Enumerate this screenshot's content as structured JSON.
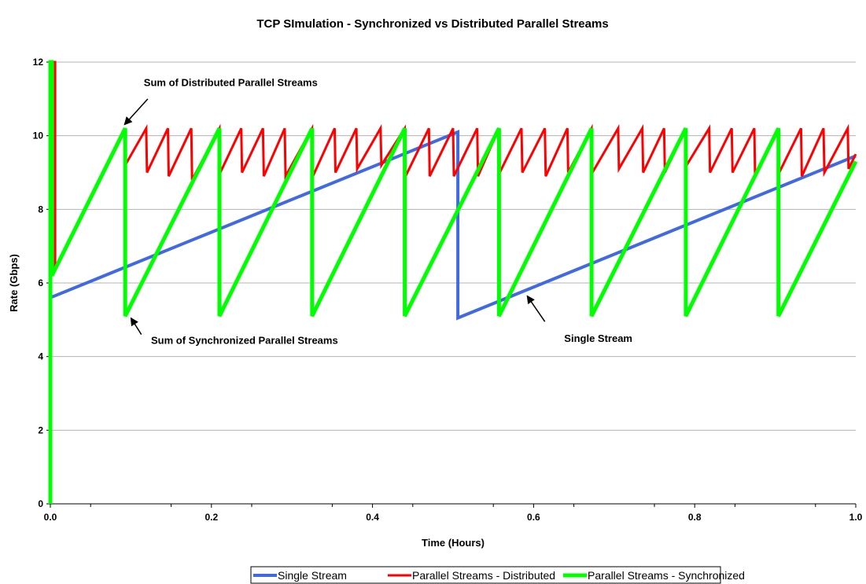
{
  "chart_data": {
    "type": "line",
    "title": "TCP SImulation - Synchronized vs Distributed Parallel Streams",
    "xlabel": "Time (Hours)",
    "ylabel": "Rate (Gbps)",
    "xlim": [
      0,
      1
    ],
    "ylim": [
      0,
      12
    ],
    "x_ticks": [
      "0.0",
      "0.2",
      "0.4",
      "0.6",
      "0.8",
      "1.0"
    ],
    "y_ticks": [
      "0",
      "2",
      "4",
      "6",
      "8",
      "10",
      "12"
    ],
    "grid": "horizontal",
    "legend_position": "bottom",
    "series": [
      {
        "name": "Single Stream",
        "color": "#4169e1",
        "points": [
          [
            0.0,
            5.6
          ],
          [
            0.506,
            10.1
          ],
          [
            0.506,
            5.05
          ],
          [
            1.0,
            9.45
          ]
        ]
      },
      {
        "name": "Parallel Streams - Distributed",
        "color": "#ff0000",
        "points": [
          [
            0.0,
            12.0
          ],
          [
            0.006,
            12.0
          ],
          [
            0.006,
            6.4
          ],
          [
            0.092,
            10.2
          ],
          [
            0.093,
            9.2
          ],
          [
            0.119,
            10.2
          ],
          [
            0.12,
            9.0
          ],
          [
            0.146,
            10.2
          ],
          [
            0.147,
            8.9
          ],
          [
            0.175,
            10.2
          ],
          [
            0.176,
            8.8
          ],
          [
            0.21,
            10.2
          ],
          [
            0.211,
            9.0
          ],
          [
            0.237,
            10.2
          ],
          [
            0.238,
            9.0
          ],
          [
            0.264,
            10.2
          ],
          [
            0.265,
            8.9
          ],
          [
            0.291,
            10.2
          ],
          [
            0.292,
            8.9
          ],
          [
            0.325,
            10.2
          ],
          [
            0.326,
            8.9
          ],
          [
            0.353,
            10.2
          ],
          [
            0.354,
            9.0
          ],
          [
            0.38,
            10.2
          ],
          [
            0.381,
            9.1
          ],
          [
            0.41,
            10.2
          ],
          [
            0.411,
            9.2
          ],
          [
            0.44,
            10.2
          ],
          [
            0.441,
            8.9
          ],
          [
            0.47,
            10.2
          ],
          [
            0.471,
            8.9
          ],
          [
            0.5,
            10.2
          ],
          [
            0.501,
            8.9
          ],
          [
            0.53,
            10.2
          ],
          [
            0.531,
            8.9
          ],
          [
            0.557,
            10.2
          ],
          [
            0.558,
            9.0
          ],
          [
            0.585,
            10.2
          ],
          [
            0.586,
            9.0
          ],
          [
            0.614,
            10.2
          ],
          [
            0.615,
            8.9
          ],
          [
            0.642,
            10.2
          ],
          [
            0.643,
            9.0
          ],
          [
            0.672,
            10.2
          ],
          [
            0.673,
            9.0
          ],
          [
            0.705,
            10.2
          ],
          [
            0.706,
            9.1
          ],
          [
            0.735,
            10.2
          ],
          [
            0.736,
            9.0
          ],
          [
            0.762,
            10.2
          ],
          [
            0.763,
            9.0
          ],
          [
            0.789,
            10.2
          ],
          [
            0.79,
            9.2
          ],
          [
            0.818,
            10.2
          ],
          [
            0.819,
            9.0
          ],
          [
            0.846,
            10.2
          ],
          [
            0.847,
            9.0
          ],
          [
            0.874,
            10.2
          ],
          [
            0.875,
            8.9
          ],
          [
            0.904,
            10.2
          ],
          [
            0.905,
            9.0
          ],
          [
            0.932,
            10.2
          ],
          [
            0.933,
            8.9
          ],
          [
            0.96,
            10.2
          ],
          [
            0.961,
            9.0
          ],
          [
            0.99,
            10.2
          ],
          [
            0.991,
            9.1
          ],
          [
            1.0,
            9.5
          ]
        ]
      },
      {
        "name": "Parallel Streams - Synchronized",
        "color": "#00ff00",
        "points": [
          [
            0.0,
            0.0
          ],
          [
            0.0,
            12.0
          ],
          [
            0.002,
            12.0
          ],
          [
            0.002,
            6.2
          ],
          [
            0.093,
            10.2
          ],
          [
            0.093,
            5.1
          ],
          [
            0.21,
            10.2
          ],
          [
            0.21,
            5.1
          ],
          [
            0.325,
            10.2
          ],
          [
            0.325,
            5.1
          ],
          [
            0.44,
            10.2
          ],
          [
            0.44,
            5.1
          ],
          [
            0.557,
            10.2
          ],
          [
            0.557,
            5.1
          ],
          [
            0.672,
            10.2
          ],
          [
            0.672,
            5.1
          ],
          [
            0.789,
            10.2
          ],
          [
            0.789,
            5.1
          ],
          [
            0.904,
            10.2
          ],
          [
            0.904,
            5.1
          ],
          [
            1.0,
            9.3
          ]
        ]
      }
    ],
    "annotations": [
      {
        "text": "Sum of Distributed Parallel Streams",
        "x": 0.116,
        "y": 11.35,
        "arrow_to": [
          0.092,
          10.3
        ],
        "arrow_from": [
          0.121,
          11.0
        ]
      },
      {
        "text": "Sum of Synchronized Parallel Streams",
        "x": 0.125,
        "y": 4.35,
        "arrow_to": [
          0.1,
          5.05
        ],
        "arrow_from": [
          0.113,
          4.6
        ]
      },
      {
        "text": "Single Stream",
        "x": 0.638,
        "y": 4.4,
        "arrow_to": [
          0.592,
          5.65
        ],
        "arrow_from": [
          0.614,
          4.95
        ]
      }
    ]
  }
}
